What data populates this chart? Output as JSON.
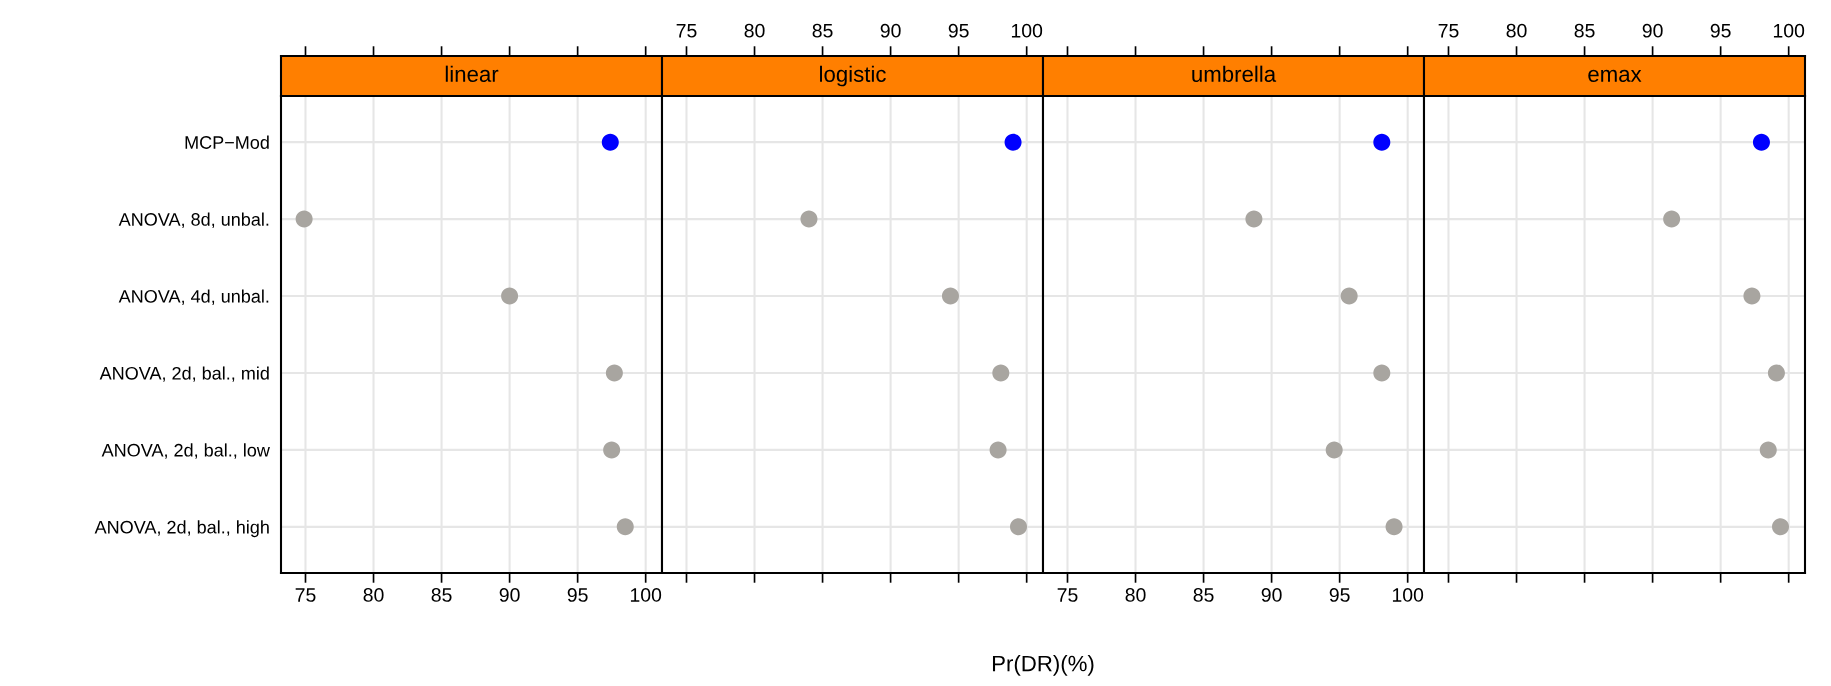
{
  "chart_data": [
    {
      "type": "scatter",
      "orientation": "horizontal",
      "title": "linear",
      "categories": [
        "MCP−Mod",
        "ANOVA, 8d, unbal.",
        "ANOVA, 4d, unbal.",
        "ANOVA, 2d, bal., mid",
        "ANOVA, 2d, bal., low",
        "ANOVA, 2d, bal., high"
      ],
      "marker": "circle",
      "grid": true,
      "xlim": [
        73.2,
        101.2
      ],
      "xticks": [
        75,
        80,
        85,
        90,
        95,
        100
      ],
      "series": [
        {
          "values": [
            97.4,
            74.9,
            90.0,
            97.7,
            97.5,
            98.5
          ],
          "colors": [
            "#0000ff",
            "#a8a5a0",
            "#a8a5a0",
            "#a8a5a0",
            "#a8a5a0",
            "#a8a5a0"
          ]
        }
      ]
    },
    {
      "type": "scatter",
      "orientation": "horizontal",
      "title": "logistic",
      "xlabel": "Pr(DR)(%)",
      "categories": [
        null,
        null,
        null,
        null,
        null,
        null
      ],
      "marker": "circle",
      "grid": true,
      "tick_labels": "x",
      "x2lim": [
        73.2,
        101.2
      ],
      "x2ticks": [
        75,
        80,
        85,
        90,
        95,
        100
      ],
      "series": [
        {
          "axis": "x2",
          "values": [
            99.0,
            84.0,
            94.4,
            98.1,
            97.9,
            99.4
          ],
          "colors": [
            "#0000ff",
            "#a8a5a0",
            "#a8a5a0",
            "#a8a5a0",
            "#a8a5a0",
            "#a8a5a0"
          ]
        }
      ]
    },
    {
      "type": "scatter",
      "orientation": "horizontal",
      "title": "umbrella",
      "categories": [
        null,
        null,
        null,
        null,
        null,
        null
      ],
      "marker": "circle",
      "grid": true,
      "tick_labels": "x",
      "xlim": [
        73.2,
        101.2
      ],
      "xticks": [
        75,
        80,
        85,
        90,
        95,
        100
      ],
      "series": [
        {
          "values": [
            98.1,
            88.7,
            95.7,
            98.1,
            94.6,
            99.0
          ],
          "colors": [
            "#0000ff",
            "#a8a5a0",
            "#a8a5a0",
            "#a8a5a0",
            "#a8a5a0",
            "#a8a5a0"
          ]
        }
      ]
    },
    {
      "type": "scatter",
      "orientation": "horizontal",
      "title": "emax",
      "categories": [
        null,
        null,
        null,
        null,
        null,
        null
      ],
      "marker": "circle",
      "grid": true,
      "tick_labels": "x",
      "x2lim": [
        73.2,
        101.2
      ],
      "x2ticks": [
        75,
        80,
        85,
        90,
        95,
        100
      ],
      "series": [
        {
          "axis": "x2",
          "values": [
            98.0,
            91.4,
            97.3,
            99.1,
            98.5,
            99.4
          ],
          "colors": [
            "#0000ff",
            "#a8a5a0",
            "#a8a5a0",
            "#a8a5a0",
            "#a8a5a0",
            "#a8a5a0"
          ]
        }
      ]
    }
  ]
}
